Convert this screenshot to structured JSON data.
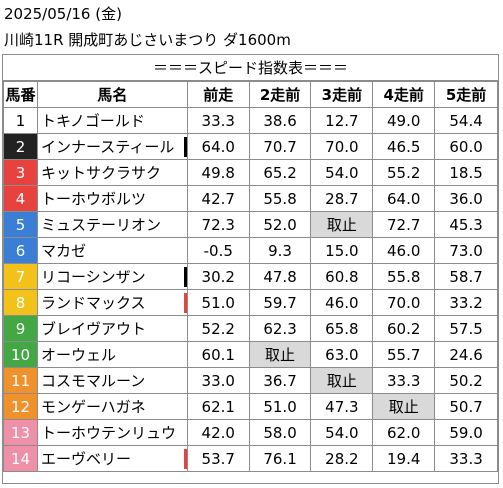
{
  "header": {
    "date": "2025/05/16 (金)",
    "race": "川崎11R 開成町あじさいまつり ダ1600m"
  },
  "table": {
    "title": "＝＝＝スピード指数表＝＝＝",
    "columns": [
      "馬番",
      "馬名",
      "前走",
      "2走前",
      "3走前",
      "4走前",
      "5走前"
    ],
    "rows": [
      {
        "no": "1",
        "name": "トキノゴールド",
        "vals": [
          "33.3",
          "38.6",
          "12.7",
          "49.0",
          "54.4"
        ],
        "color": "#ffffff",
        "text": "#000000",
        "mark": ""
      },
      {
        "no": "2",
        "name": "インナースティール",
        "vals": [
          "64.0",
          "70.7",
          "70.0",
          "46.5",
          "60.0"
        ],
        "color": "#222222",
        "text": "#ffffff",
        "mark": "#000000"
      },
      {
        "no": "3",
        "name": "キットサクラサク",
        "vals": [
          "49.8",
          "65.2",
          "54.0",
          "55.2",
          "18.5"
        ],
        "color": "#e8423f",
        "text": "#ffffff",
        "mark": ""
      },
      {
        "no": "4",
        "name": "トーホウボルツ",
        "vals": [
          "42.7",
          "55.8",
          "28.7",
          "64.0",
          "36.0"
        ],
        "color": "#e8423f",
        "text": "#ffffff",
        "mark": ""
      },
      {
        "no": "5",
        "name": "ミュステーリオン",
        "vals": [
          "72.3",
          "52.0",
          "取止",
          "72.7",
          "45.3"
        ],
        "color": "#3a7fd5",
        "text": "#ffffff",
        "mark": ""
      },
      {
        "no": "6",
        "name": "マカゼ",
        "vals": [
          "-0.5",
          "9.3",
          "15.0",
          "46.0",
          "73.0"
        ],
        "color": "#3a7fd5",
        "text": "#ffffff",
        "mark": ""
      },
      {
        "no": "7",
        "name": "リコーシンザン",
        "vals": [
          "30.2",
          "47.8",
          "60.8",
          "55.8",
          "58.7"
        ],
        "color": "#f2c21b",
        "text": "#ffffff",
        "mark": "#000000"
      },
      {
        "no": "8",
        "name": "ランドマックス",
        "vals": [
          "51.0",
          "59.7",
          "46.0",
          "70.0",
          "33.2"
        ],
        "color": "#f2c21b",
        "text": "#ffffff",
        "mark": "#e8423f"
      },
      {
        "no": "9",
        "name": "ブレイヴアウト",
        "vals": [
          "52.2",
          "62.3",
          "65.8",
          "60.2",
          "57.5"
        ],
        "color": "#43a843",
        "text": "#ffffff",
        "mark": ""
      },
      {
        "no": "10",
        "name": "オーウェル",
        "vals": [
          "60.1",
          "取止",
          "63.0",
          "55.7",
          "24.6"
        ],
        "color": "#43a843",
        "text": "#ffffff",
        "mark": ""
      },
      {
        "no": "11",
        "name": "コスモマルーン",
        "vals": [
          "33.0",
          "36.7",
          "取止",
          "33.3",
          "50.2"
        ],
        "color": "#f0922b",
        "text": "#ffffff",
        "mark": ""
      },
      {
        "no": "12",
        "name": "モンゲーハガネ",
        "vals": [
          "62.1",
          "51.0",
          "47.3",
          "取止",
          "50.7"
        ],
        "color": "#f0922b",
        "text": "#ffffff",
        "mark": ""
      },
      {
        "no": "13",
        "name": "トーホウテンリュウ",
        "vals": [
          "42.0",
          "58.0",
          "54.0",
          "62.0",
          "59.0"
        ],
        "color": "#ef8fa8",
        "text": "#ffffff",
        "mark": ""
      },
      {
        "no": "14",
        "name": "エーヴベリー",
        "vals": [
          "53.7",
          "76.1",
          "28.2",
          "19.4",
          "33.3"
        ],
        "color": "#ef8fa8",
        "text": "#ffffff",
        "mark": "#e8423f"
      }
    ]
  }
}
